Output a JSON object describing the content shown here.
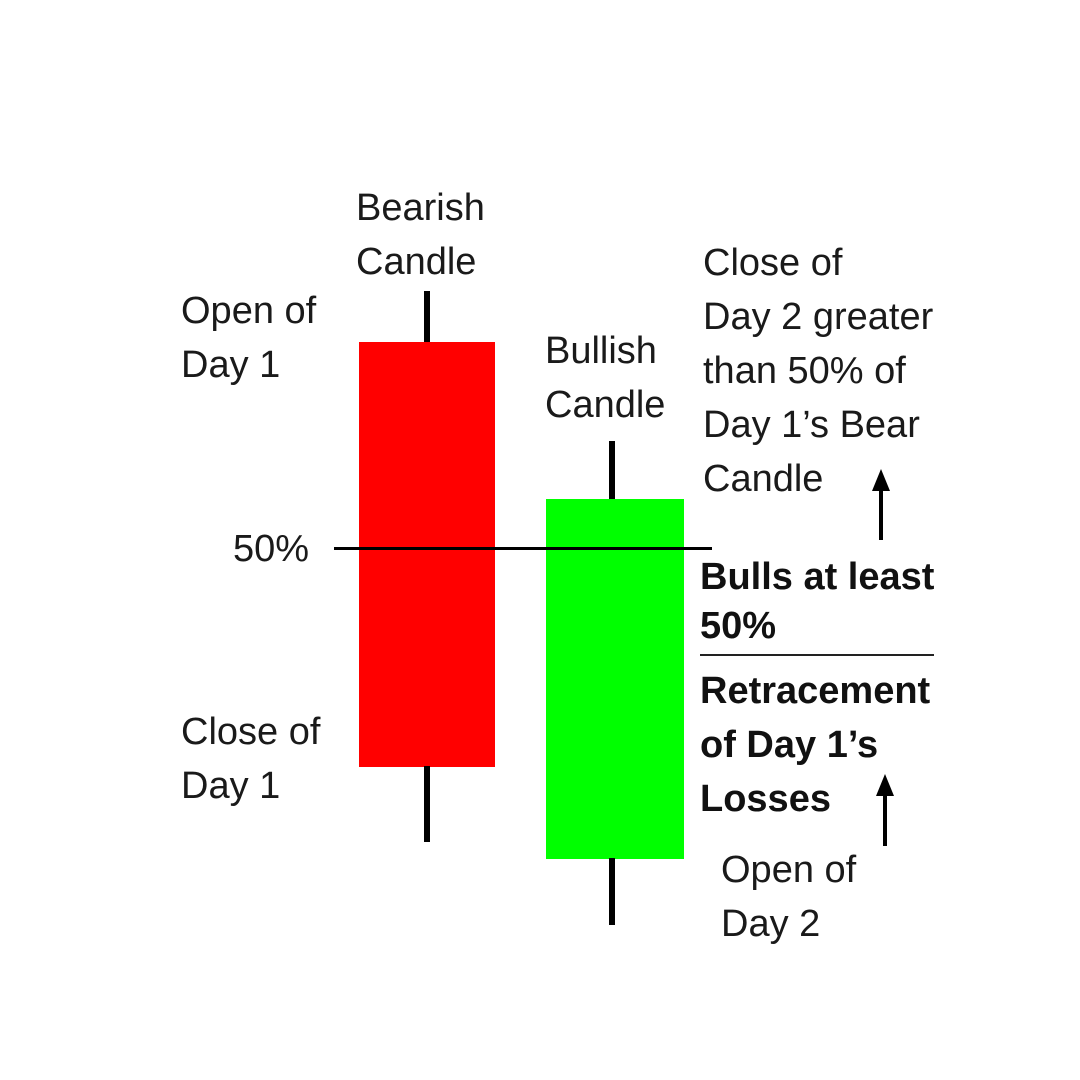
{
  "diagram": {
    "colors": {
      "bearish": "#ff0000",
      "bullish": "#00ff00",
      "line": "#000000",
      "text": "#1a1a1a",
      "background": "#ffffff"
    },
    "bearish_title": [
      "Bearish",
      "Candle"
    ],
    "bullish_title": [
      "Bullish",
      "Candle"
    ],
    "open_day1": [
      "Open of",
      "Day 1"
    ],
    "close_day1": [
      "Close of",
      "Day 1"
    ],
    "fifty_label": "50%",
    "close_day2_note": [
      "Close of",
      "Day 2 greater",
      "than 50% of",
      "Day 1’s Bear",
      "Candle"
    ],
    "bulls_note": {
      "line1": "Bulls at least",
      "line2": "50%",
      "line3": "Retracement",
      "line4": "of Day 1’s",
      "line5": "Losses"
    },
    "open_day2": [
      "Open of",
      "Day 2"
    ]
  }
}
